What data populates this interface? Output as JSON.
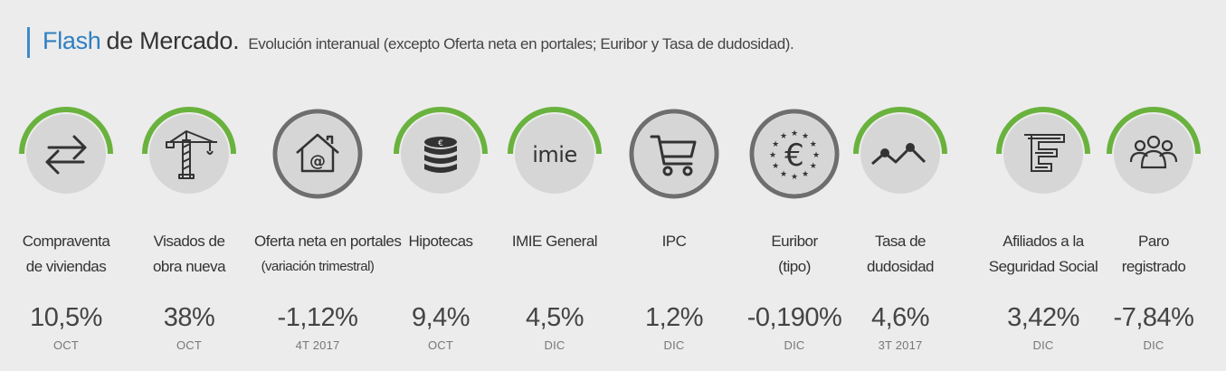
{
  "header": {
    "title_accent": "Flash",
    "title_rest": "de Mercado.",
    "subtitle": "Evolución interanual (excepto Oferta neta en portales; Euribor y Tasa de dudosidad)."
  },
  "colors": {
    "accent_green": "#6ab23e",
    "ring_gray": "#6e6e6e",
    "circle_fill": "#d6d6d6",
    "title_blue": "#2f7fc1"
  },
  "indicators": [
    {
      "id": "compraventa",
      "icon": "arrows-exchange-icon",
      "ring": "green",
      "label_line1": "Compraventa",
      "label_line2": "de viviendas",
      "value": "10,5%",
      "period": "OCT"
    },
    {
      "id": "visados",
      "icon": "crane-icon",
      "ring": "green",
      "label_line1": "Visados de",
      "label_line2": "obra nueva",
      "value": "38%",
      "period": "OCT"
    },
    {
      "id": "oferta",
      "icon": "house-at-icon",
      "ring": "gray",
      "label_line1": "Oferta neta en portales",
      "label_line2": "(variación trimestral)",
      "value": "-1,12%",
      "period": "4T 2017"
    },
    {
      "id": "hipotecas",
      "icon": "coin-stack-icon",
      "ring": "green",
      "label_line1": "Hipotecas",
      "label_line2": "",
      "value": "9,4%",
      "period": "OCT"
    },
    {
      "id": "imie",
      "icon": "imie-logo-icon",
      "ring": "green",
      "logo_text": "imie",
      "label_line1": "IMIE General",
      "label_line2": "",
      "value": "4,5%",
      "period": "DIC"
    },
    {
      "id": "ipc",
      "icon": "shopping-cart-icon",
      "ring": "gray",
      "label_line1": "IPC",
      "label_line2": "",
      "value": "1,2%",
      "period": "DIC"
    },
    {
      "id": "euribor",
      "icon": "euro-stars-icon",
      "ring": "gray",
      "label_line1": "Euribor",
      "label_line2": "(tipo)",
      "value": "-0,190%",
      "period": "DIC"
    },
    {
      "id": "dudosidad",
      "icon": "line-chart-icon",
      "ring": "green",
      "label_line1": "Tasa de",
      "label_line2": "dudosidad",
      "value": "4,6%",
      "period": "3T 2017"
    },
    {
      "id": "afiliados",
      "icon": "social-security-icon",
      "ring": "green",
      "label_line1": "Afiliados a la",
      "label_line2": "Seguridad Social",
      "value": "3,42%",
      "period": "DIC"
    },
    {
      "id": "paro",
      "icon": "people-group-icon",
      "ring": "green",
      "label_line1": "Paro",
      "label_line2": "registrado",
      "value": "-7,84%",
      "period": "DIC"
    }
  ]
}
